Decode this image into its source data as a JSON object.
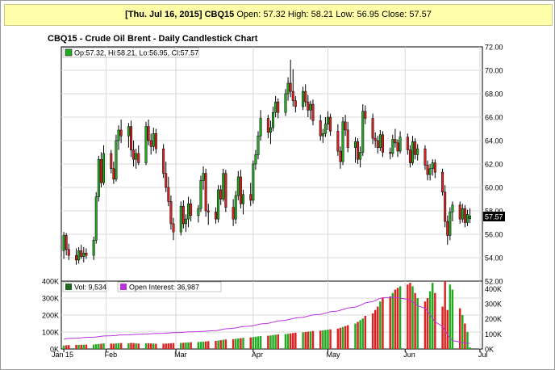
{
  "header": {
    "date_label": "[Thu. Jul 16, 2015]",
    "symbol": "CBQ15",
    "ohlc_text": "Open: 57.32 High: 58.21 Low: 56.95 Close: 57.57"
  },
  "colors": {
    "up": "#22aa22",
    "down": "#dd2222",
    "open_interest_line": "#bb33dd",
    "header_bg": "#ffffaa",
    "grid": "#d8d8d8"
  },
  "chart_data": {
    "type": "candlestick",
    "title": "CBQ15 - Crude Oil Brent - Daily Candlestick Chart",
    "price_legend": "Op:57.32, Hi:58.21, Lo:56.95, Cl:57.57",
    "last_price_label": "57.57",
    "price_axis": {
      "ylim": [
        52,
        72
      ],
      "ticks": [
        "72.00",
        "70.00",
        "68.00",
        "66.00",
        "64.00",
        "62.00",
        "60.00",
        "58.00",
        "56.00",
        "54.00",
        "52.00"
      ]
    },
    "x_labels": [
      "Jan 15",
      "Feb",
      "Mar",
      "Apr",
      "May",
      "Jun",
      "Jul"
    ],
    "x_label_days": [
      0,
      17,
      45,
      76,
      106,
      137,
      167
    ],
    "volume_panel": {
      "volume_legend": "Vol: 9,534",
      "oi_legend": "Open Interest: 36,987",
      "left_axis": {
        "ylim": [
          0,
          400000
        ],
        "ticks": [
          "400K",
          "300K",
          "200K",
          "100K",
          "0K"
        ]
      },
      "right_axis": {
        "ylim": [
          0,
          450000
        ],
        "ticks": [
          "400K",
          "300K",
          "200K",
          "100K",
          "0K"
        ]
      }
    },
    "bars": [
      {
        "d": 0,
        "o": 54.6,
        "h": 56.2,
        "l": 53.9,
        "c": 55.9,
        "v": 20000,
        "oi": 65000
      },
      {
        "d": 1,
        "o": 55.9,
        "h": 56.1,
        "l": 54.2,
        "c": 54.7,
        "v": 22000,
        "oi": 68000
      },
      {
        "d": 2,
        "o": 54.7,
        "h": 55.2,
        "l": 53.8,
        "c": 54.2,
        "v": 23000,
        "oi": 70000
      },
      {
        "d": 5,
        "o": 54.2,
        "h": 54.8,
        "l": 53.4,
        "c": 53.8,
        "v": 24000,
        "oi": 72000
      },
      {
        "d": 6,
        "o": 53.8,
        "h": 54.9,
        "l": 53.5,
        "c": 54.6,
        "v": 24000,
        "oi": 73000
      },
      {
        "d": 7,
        "o": 54.6,
        "h": 55.1,
        "l": 53.9,
        "c": 54.1,
        "v": 25000,
        "oi": 74000
      },
      {
        "d": 8,
        "o": 54.1,
        "h": 54.9,
        "l": 53.6,
        "c": 54.4,
        "v": 25000,
        "oi": 76000
      },
      {
        "d": 9,
        "o": 54.4,
        "h": 54.8,
        "l": 53.9,
        "c": 54.2,
        "v": 26000,
        "oi": 77000
      },
      {
        "d": 12,
        "o": 54.2,
        "h": 55.8,
        "l": 53.8,
        "c": 55.5,
        "v": 26000,
        "oi": 78000
      },
      {
        "d": 13,
        "o": 55.5,
        "h": 59.6,
        "l": 55.2,
        "c": 59.2,
        "v": 28000,
        "oi": 80000
      },
      {
        "d": 14,
        "o": 59.2,
        "h": 62.7,
        "l": 58.8,
        "c": 62.4,
        "v": 30000,
        "oi": 82000
      },
      {
        "d": 15,
        "o": 62.4,
        "h": 63.0,
        "l": 60.0,
        "c": 60.4,
        "v": 31000,
        "oi": 84000
      },
      {
        "d": 16,
        "o": 60.4,
        "h": 63.6,
        "l": 60.2,
        "c": 62.9,
        "v": 33000,
        "oi": 86000
      },
      {
        "d": 19,
        "o": 62.9,
        "h": 63.2,
        "l": 61.2,
        "c": 61.6,
        "v": 32000,
        "oi": 88000
      },
      {
        "d": 20,
        "o": 61.6,
        "h": 62.2,
        "l": 60.3,
        "c": 60.7,
        "v": 31000,
        "oi": 89000
      },
      {
        "d": 21,
        "o": 60.7,
        "h": 64.5,
        "l": 60.5,
        "c": 64.0,
        "v": 33000,
        "oi": 90000
      },
      {
        "d": 22,
        "o": 64.0,
        "h": 65.3,
        "l": 63.2,
        "c": 64.9,
        "v": 34000,
        "oi": 92000
      },
      {
        "d": 23,
        "o": 64.9,
        "h": 65.8,
        "l": 63.8,
        "c": 64.4,
        "v": 35000,
        "oi": 93000
      },
      {
        "d": 26,
        "o": 64.4,
        "h": 65.5,
        "l": 63.4,
        "c": 65.2,
        "v": 34000,
        "oi": 94000
      },
      {
        "d": 27,
        "o": 65.2,
        "h": 65.7,
        "l": 62.6,
        "c": 63.2,
        "v": 36000,
        "oi": 95000
      },
      {
        "d": 28,
        "o": 63.2,
        "h": 64.0,
        "l": 61.8,
        "c": 62.4,
        "v": 35000,
        "oi": 96000
      },
      {
        "d": 29,
        "o": 62.4,
        "h": 63.3,
        "l": 61.6,
        "c": 62.9,
        "v": 33000,
        "oi": 97000
      },
      {
        "d": 30,
        "o": 62.9,
        "h": 63.6,
        "l": 61.9,
        "c": 62.1,
        "v": 32000,
        "oi": 98000
      },
      {
        "d": 33,
        "o": 62.1,
        "h": 65.6,
        "l": 61.9,
        "c": 65.2,
        "v": 33000,
        "oi": 99000
      },
      {
        "d": 34,
        "o": 65.2,
        "h": 65.8,
        "l": 63.6,
        "c": 64.0,
        "v": 34000,
        "oi": 100000
      },
      {
        "d": 35,
        "o": 64.0,
        "h": 64.6,
        "l": 62.8,
        "c": 63.5,
        "v": 33000,
        "oi": 101000
      },
      {
        "d": 36,
        "o": 63.5,
        "h": 65.1,
        "l": 63.1,
        "c": 64.6,
        "v": 32000,
        "oi": 102000
      },
      {
        "d": 37,
        "o": 64.6,
        "h": 65.0,
        "l": 62.9,
        "c": 63.3,
        "v": 31000,
        "oi": 103000
      },
      {
        "d": 40,
        "o": 63.3,
        "h": 63.7,
        "l": 60.8,
        "c": 61.2,
        "v": 31000,
        "oi": 104000
      },
      {
        "d": 41,
        "o": 61.2,
        "h": 62.2,
        "l": 59.6,
        "c": 60.0,
        "v": 32000,
        "oi": 105000
      },
      {
        "d": 42,
        "o": 60.0,
        "h": 60.9,
        "l": 58.4,
        "c": 58.8,
        "v": 33000,
        "oi": 106000
      },
      {
        "d": 43,
        "o": 58.8,
        "h": 59.3,
        "l": 56.4,
        "c": 56.9,
        "v": 34000,
        "oi": 107000
      },
      {
        "d": 44,
        "o": 56.9,
        "h": 57.4,
        "l": 55.5,
        "c": 56.2,
        "v": 35000,
        "oi": 108000
      },
      {
        "d": 47,
        "o": 56.2,
        "h": 58.8,
        "l": 55.9,
        "c": 58.4,
        "v": 36000,
        "oi": 110000
      },
      {
        "d": 48,
        "o": 58.4,
        "h": 58.9,
        "l": 56.5,
        "c": 56.9,
        "v": 37000,
        "oi": 111000
      },
      {
        "d": 49,
        "o": 56.9,
        "h": 57.7,
        "l": 56.2,
        "c": 57.3,
        "v": 38000,
        "oi": 112000
      },
      {
        "d": 50,
        "o": 57.3,
        "h": 59.2,
        "l": 56.6,
        "c": 58.6,
        "v": 39000,
        "oi": 113000
      },
      {
        "d": 51,
        "o": 58.6,
        "h": 59.0,
        "l": 57.1,
        "c": 57.6,
        "v": 40000,
        "oi": 114000
      },
      {
        "d": 54,
        "o": 57.6,
        "h": 58.5,
        "l": 57.0,
        "c": 58.2,
        "v": 41000,
        "oi": 115000
      },
      {
        "d": 55,
        "o": 58.2,
        "h": 61.0,
        "l": 57.9,
        "c": 60.6,
        "v": 42000,
        "oi": 116000
      },
      {
        "d": 56,
        "o": 60.6,
        "h": 61.8,
        "l": 59.8,
        "c": 61.2,
        "v": 43000,
        "oi": 117000
      },
      {
        "d": 57,
        "o": 61.2,
        "h": 61.6,
        "l": 57.5,
        "c": 58.0,
        "v": 45000,
        "oi": 118000
      },
      {
        "d": 58,
        "o": 58.0,
        "h": 58.6,
        "l": 56.8,
        "c": 57.9,
        "v": 46000,
        "oi": 120000
      },
      {
        "d": 61,
        "o": 57.9,
        "h": 58.3,
        "l": 56.9,
        "c": 57.3,
        "v": 48000,
        "oi": 122000
      },
      {
        "d": 62,
        "o": 57.3,
        "h": 60.2,
        "l": 57.0,
        "c": 59.8,
        "v": 50000,
        "oi": 125000
      },
      {
        "d": 63,
        "o": 59.8,
        "h": 60.2,
        "l": 58.5,
        "c": 59.0,
        "v": 52000,
        "oi": 128000
      },
      {
        "d": 64,
        "o": 59.0,
        "h": 61.6,
        "l": 58.8,
        "c": 61.2,
        "v": 54000,
        "oi": 131000
      },
      {
        "d": 65,
        "o": 61.2,
        "h": 61.5,
        "l": 57.9,
        "c": 58.3,
        "v": 56000,
        "oi": 134000
      },
      {
        "d": 68,
        "o": 58.3,
        "h": 59.0,
        "l": 56.7,
        "c": 57.3,
        "v": 58000,
        "oi": 137000
      },
      {
        "d": 69,
        "o": 57.3,
        "h": 59.7,
        "l": 56.9,
        "c": 59.3,
        "v": 60000,
        "oi": 140000
      },
      {
        "d": 70,
        "o": 59.3,
        "h": 61.4,
        "l": 58.9,
        "c": 60.9,
        "v": 62000,
        "oi": 143000
      },
      {
        "d": 71,
        "o": 60.9,
        "h": 61.5,
        "l": 58.2,
        "c": 58.6,
        "v": 64000,
        "oi": 146000
      },
      {
        "d": 72,
        "o": 58.6,
        "h": 59.8,
        "l": 57.7,
        "c": 59.4,
        "v": 66000,
        "oi": 149000
      },
      {
        "d": 75,
        "o": 59.4,
        "h": 60.4,
        "l": 58.4,
        "c": 58.9,
        "v": 68000,
        "oi": 152000
      },
      {
        "d": 76,
        "o": 58.9,
        "h": 62.3,
        "l": 58.6,
        "c": 62.0,
        "v": 70000,
        "oi": 155000
      },
      {
        "d": 77,
        "o": 62.0,
        "h": 63.2,
        "l": 61.5,
        "c": 62.8,
        "v": 72000,
        "oi": 158000
      },
      {
        "d": 78,
        "o": 62.8,
        "h": 64.8,
        "l": 62.4,
        "c": 64.4,
        "v": 74000,
        "oi": 162000
      },
      {
        "d": 79,
        "o": 64.4,
        "h": 66.6,
        "l": 64.0,
        "c": 65.9,
        "v": 76000,
        "oi": 166000
      },
      {
        "d": 82,
        "o": 65.9,
        "h": 66.2,
        "l": 64.2,
        "c": 64.7,
        "v": 78000,
        "oi": 170000
      },
      {
        "d": 83,
        "o": 64.7,
        "h": 65.7,
        "l": 63.7,
        "c": 65.1,
        "v": 80000,
        "oi": 174000
      },
      {
        "d": 84,
        "o": 65.1,
        "h": 66.9,
        "l": 64.8,
        "c": 66.4,
        "v": 82000,
        "oi": 178000
      },
      {
        "d": 85,
        "o": 66.4,
        "h": 67.8,
        "l": 66.0,
        "c": 67.3,
        "v": 84000,
        "oi": 182000
      },
      {
        "d": 86,
        "o": 67.3,
        "h": 67.6,
        "l": 65.9,
        "c": 66.4,
        "v": 86000,
        "oi": 186000
      },
      {
        "d": 89,
        "o": 66.4,
        "h": 68.4,
        "l": 66.1,
        "c": 68.0,
        "v": 88000,
        "oi": 190000
      },
      {
        "d": 90,
        "o": 68.0,
        "h": 69.4,
        "l": 67.4,
        "c": 68.9,
        "v": 90000,
        "oi": 194000
      },
      {
        "d": 91,
        "o": 68.9,
        "h": 70.9,
        "l": 67.7,
        "c": 68.2,
        "v": 92000,
        "oi": 198000
      },
      {
        "d": 92,
        "o": 68.2,
        "h": 70.1,
        "l": 66.9,
        "c": 67.4,
        "v": 94000,
        "oi": 202000
      },
      {
        "d": 93,
        "o": 67.4,
        "h": 67.8,
        "l": 66.4,
        "c": 66.9,
        "v": 96000,
        "oi": 206000
      },
      {
        "d": 96,
        "o": 66.9,
        "h": 68.6,
        "l": 66.6,
        "c": 68.2,
        "v": 98000,
        "oi": 210000
      },
      {
        "d": 97,
        "o": 68.2,
        "h": 68.8,
        "l": 66.9,
        "c": 67.3,
        "v": 100000,
        "oi": 214000
      },
      {
        "d": 98,
        "o": 67.3,
        "h": 67.9,
        "l": 66.0,
        "c": 66.6,
        "v": 102000,
        "oi": 218000
      },
      {
        "d": 99,
        "o": 66.6,
        "h": 67.4,
        "l": 65.8,
        "c": 67.1,
        "v": 104000,
        "oi": 222000
      },
      {
        "d": 100,
        "o": 67.1,
        "h": 67.5,
        "l": 65.3,
        "c": 65.7,
        "v": 106000,
        "oi": 226000
      },
      {
        "d": 103,
        "o": 65.7,
        "h": 66.2,
        "l": 64.0,
        "c": 64.4,
        "v": 108000,
        "oi": 230000
      },
      {
        "d": 104,
        "o": 64.4,
        "h": 65.0,
        "l": 63.8,
        "c": 64.6,
        "v": 110000,
        "oi": 234000
      },
      {
        "d": 105,
        "o": 64.6,
        "h": 66.0,
        "l": 64.3,
        "c": 65.4,
        "v": 112000,
        "oi": 238000
      },
      {
        "d": 106,
        "o": 65.4,
        "h": 66.5,
        "l": 64.9,
        "c": 66.0,
        "v": 114000,
        "oi": 242000
      },
      {
        "d": 107,
        "o": 66.0,
        "h": 66.3,
        "l": 64.4,
        "c": 64.8,
        "v": 116000,
        "oi": 247000
      },
      {
        "d": 110,
        "o": 64.8,
        "h": 65.4,
        "l": 62.7,
        "c": 63.1,
        "v": 120000,
        "oi": 252000
      },
      {
        "d": 111,
        "o": 63.1,
        "h": 63.5,
        "l": 61.6,
        "c": 62.2,
        "v": 125000,
        "oi": 257000
      },
      {
        "d": 112,
        "o": 62.2,
        "h": 66.0,
        "l": 61.9,
        "c": 65.6,
        "v": 130000,
        "oi": 262000
      },
      {
        "d": 113,
        "o": 65.6,
        "h": 66.2,
        "l": 64.4,
        "c": 64.9,
        "v": 135000,
        "oi": 267000
      },
      {
        "d": 114,
        "o": 64.9,
        "h": 65.6,
        "l": 63.0,
        "c": 63.4,
        "v": 140000,
        "oi": 272000
      },
      {
        "d": 117,
        "o": 63.4,
        "h": 64.3,
        "l": 62.1,
        "c": 63.9,
        "v": 150000,
        "oi": 278000
      },
      {
        "d": 118,
        "o": 63.9,
        "h": 64.2,
        "l": 62.0,
        "c": 62.4,
        "v": 160000,
        "oi": 284000
      },
      {
        "d": 119,
        "o": 62.4,
        "h": 63.5,
        "l": 61.7,
        "c": 63.0,
        "v": 170000,
        "oi": 290000
      },
      {
        "d": 120,
        "o": 63.0,
        "h": 67.1,
        "l": 62.7,
        "c": 66.5,
        "v": 180000,
        "oi": 298000
      },
      {
        "d": 121,
        "o": 66.5,
        "h": 67.0,
        "l": 65.4,
        "c": 65.9,
        "v": 195000,
        "oi": 306000
      },
      {
        "d": 124,
        "o": 65.9,
        "h": 66.3,
        "l": 63.7,
        "c": 64.2,
        "v": 210000,
        "oi": 314000
      },
      {
        "d": 125,
        "o": 64.2,
        "h": 64.7,
        "l": 63.4,
        "c": 64.0,
        "v": 230000,
        "oi": 322000
      },
      {
        "d": 126,
        "o": 64.0,
        "h": 64.4,
        "l": 62.9,
        "c": 63.4,
        "v": 250000,
        "oi": 330000
      },
      {
        "d": 127,
        "o": 63.4,
        "h": 64.9,
        "l": 63.1,
        "c": 64.5,
        "v": 280000,
        "oi": 336000
      },
      {
        "d": 128,
        "o": 64.5,
        "h": 64.8,
        "l": 62.6,
        "c": 63.0,
        "v": 300000,
        "oi": 340000
      },
      {
        "d": 131,
        "o": 63.0,
        "h": 63.4,
        "l": 62.4,
        "c": 62.9,
        "v": 310000,
        "oi": 342000
      },
      {
        "d": 132,
        "o": 62.9,
        "h": 64.5,
        "l": 62.6,
        "c": 64.1,
        "v": 330000,
        "oi": 343000
      },
      {
        "d": 133,
        "o": 64.1,
        "h": 65.0,
        "l": 63.4,
        "c": 63.8,
        "v": 350000,
        "oi": 342000
      },
      {
        "d": 134,
        "o": 63.8,
        "h": 64.1,
        "l": 62.6,
        "c": 63.1,
        "v": 360000,
        "oi": 340000
      },
      {
        "d": 135,
        "o": 63.1,
        "h": 64.8,
        "l": 62.9,
        "c": 64.3,
        "v": 370000,
        "oi": 336000
      },
      {
        "d": 138,
        "o": 64.3,
        "h": 64.6,
        "l": 62.8,
        "c": 63.2,
        "v": 380000,
        "oi": 330000
      },
      {
        "d": 139,
        "o": 63.2,
        "h": 63.6,
        "l": 61.7,
        "c": 62.1,
        "v": 390000,
        "oi": 322000
      },
      {
        "d": 140,
        "o": 62.1,
        "h": 64.4,
        "l": 61.9,
        "c": 63.9,
        "v": 370000,
        "oi": 312000
      },
      {
        "d": 141,
        "o": 63.9,
        "h": 64.2,
        "l": 62.4,
        "c": 62.8,
        "v": 330000,
        "oi": 300000
      },
      {
        "d": 142,
        "o": 62.8,
        "h": 63.7,
        "l": 62.3,
        "c": 63.3,
        "v": 300000,
        "oi": 286000
      },
      {
        "d": 145,
        "o": 63.3,
        "h": 63.6,
        "l": 61.5,
        "c": 61.9,
        "v": 280000,
        "oi": 270000
      },
      {
        "d": 146,
        "o": 61.9,
        "h": 62.3,
        "l": 60.6,
        "c": 61.1,
        "v": 300000,
        "oi": 250000
      },
      {
        "d": 147,
        "o": 61.1,
        "h": 62.0,
        "l": 60.6,
        "c": 61.6,
        "v": 340000,
        "oi": 228000
      },
      {
        "d": 148,
        "o": 61.6,
        "h": 62.4,
        "l": 61.0,
        "c": 62.1,
        "v": 390000,
        "oi": 205000
      },
      {
        "d": 149,
        "o": 62.1,
        "h": 62.4,
        "l": 60.8,
        "c": 61.3,
        "v": 330000,
        "oi": 180000
      },
      {
        "d": 152,
        "o": 61.3,
        "h": 61.6,
        "l": 59.3,
        "c": 59.6,
        "v": 250000,
        "oi": 150000
      },
      {
        "d": 153,
        "o": 59.6,
        "h": 60.2,
        "l": 56.6,
        "c": 57.1,
        "v": 400000,
        "oi": 120000
      },
      {
        "d": 154,
        "o": 57.1,
        "h": 57.6,
        "l": 55.1,
        "c": 55.9,
        "v": 230000,
        "oi": 95000
      },
      {
        "d": 155,
        "o": 55.9,
        "h": 58.3,
        "l": 55.5,
        "c": 57.9,
        "v": 380000,
        "oi": 72000
      },
      {
        "d": 156,
        "o": 57.9,
        "h": 58.8,
        "l": 57.1,
        "c": 58.5,
        "v": 350000,
        "oi": 55000
      },
      {
        "d": 159,
        "o": 58.5,
        "h": 58.8,
        "l": 56.9,
        "c": 57.3,
        "v": 240000,
        "oi": 46000
      },
      {
        "d": 160,
        "o": 57.3,
        "h": 58.6,
        "l": 57.0,
        "c": 58.2,
        "v": 200000,
        "oi": 42000
      },
      {
        "d": 161,
        "o": 58.2,
        "h": 58.5,
        "l": 56.6,
        "c": 57.0,
        "v": 150000,
        "oi": 40000
      },
      {
        "d": 162,
        "o": 57.0,
        "h": 58.1,
        "l": 56.7,
        "c": 57.7,
        "v": 100000,
        "oi": 38000
      },
      {
        "d": 163,
        "o": 57.32,
        "h": 58.21,
        "l": 56.95,
        "c": 57.57,
        "v": 9534,
        "oi": 36987
      }
    ]
  }
}
